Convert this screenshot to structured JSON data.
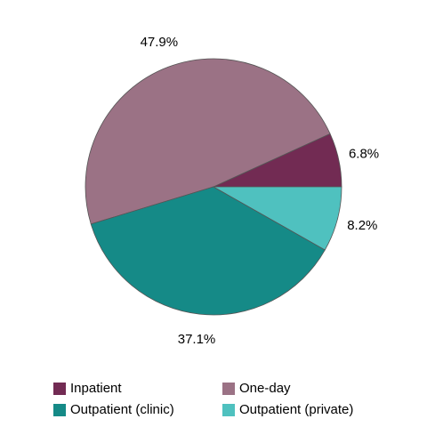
{
  "chart_data": {
    "type": "pie",
    "categories": [
      "Inpatient",
      "One-day",
      "Outpatient (clinic)",
      "Outpatient (private)"
    ],
    "values": [
      6.8,
      47.9,
      37.1,
      8.2
    ],
    "value_labels": [
      "6.8%",
      "47.9%",
      "37.1%",
      "8.2%"
    ],
    "colors": [
      "#722b53",
      "#9b7285",
      "#158a87",
      "#4fc1bf"
    ],
    "legend": "bottom"
  }
}
